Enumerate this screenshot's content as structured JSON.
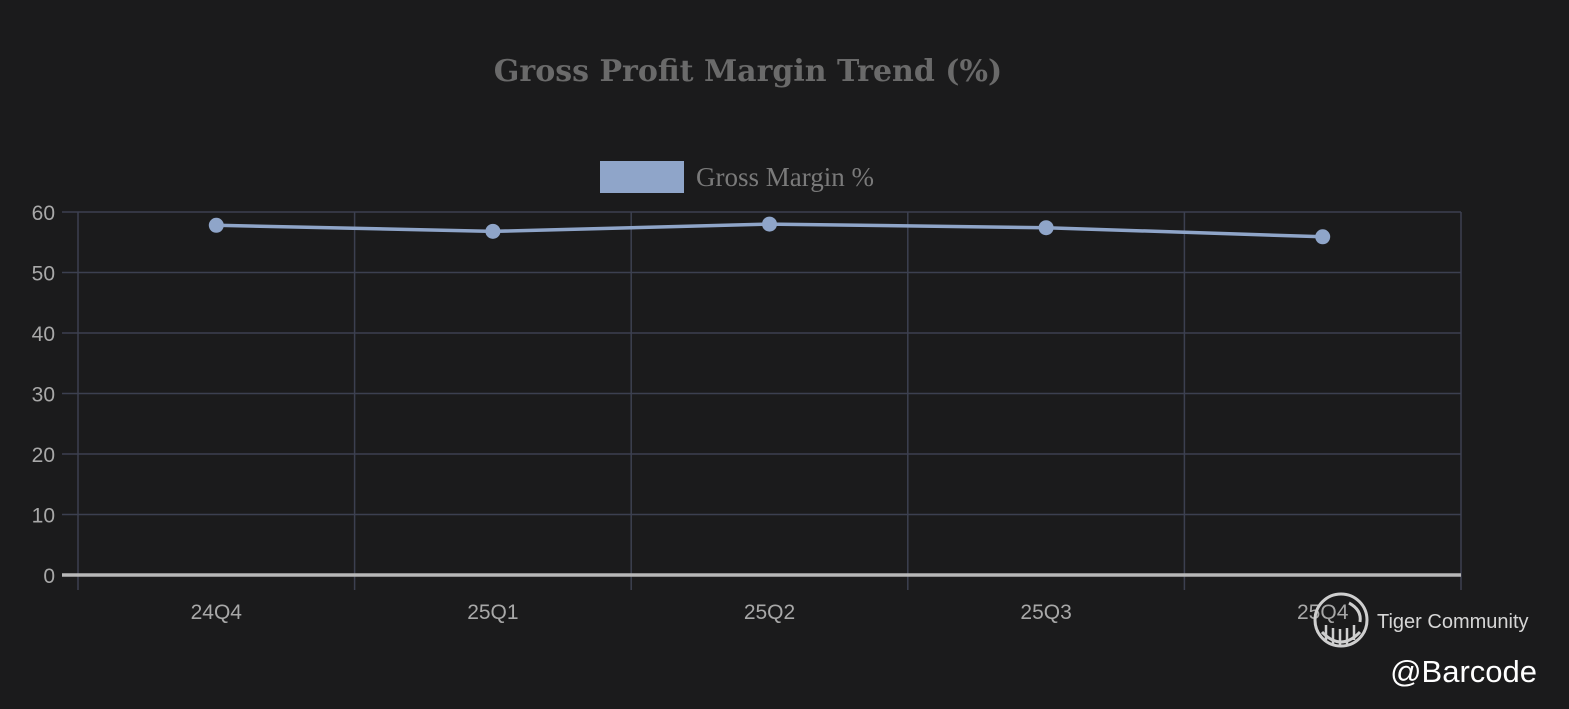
{
  "chart_data": {
    "type": "line",
    "title": "Gross Profit Margin Trend (%)",
    "categories": [
      "24Q4",
      "25Q1",
      "25Q2",
      "25Q3",
      "25Q4"
    ],
    "series": [
      {
        "name": "Gross Margin %",
        "values": [
          57.8,
          56.8,
          58.0,
          57.4,
          55.9
        ]
      }
    ],
    "xlabel": "",
    "ylabel": "",
    "ylim": [
      0,
      60
    ],
    "yticks": [
      "0",
      "10",
      "20",
      "30",
      "40",
      "50",
      "60"
    ],
    "grid": true,
    "legend_position": "top-center",
    "colors": {
      "background": "#1b1b1c",
      "series": "#8fa5c9",
      "grid": "#3c4050",
      "baseline": "#b8b8b8"
    }
  },
  "watermark": {
    "brand": "Tiger Community",
    "handle": "@Barcode",
    "icon": "tiger-logo-icon"
  }
}
